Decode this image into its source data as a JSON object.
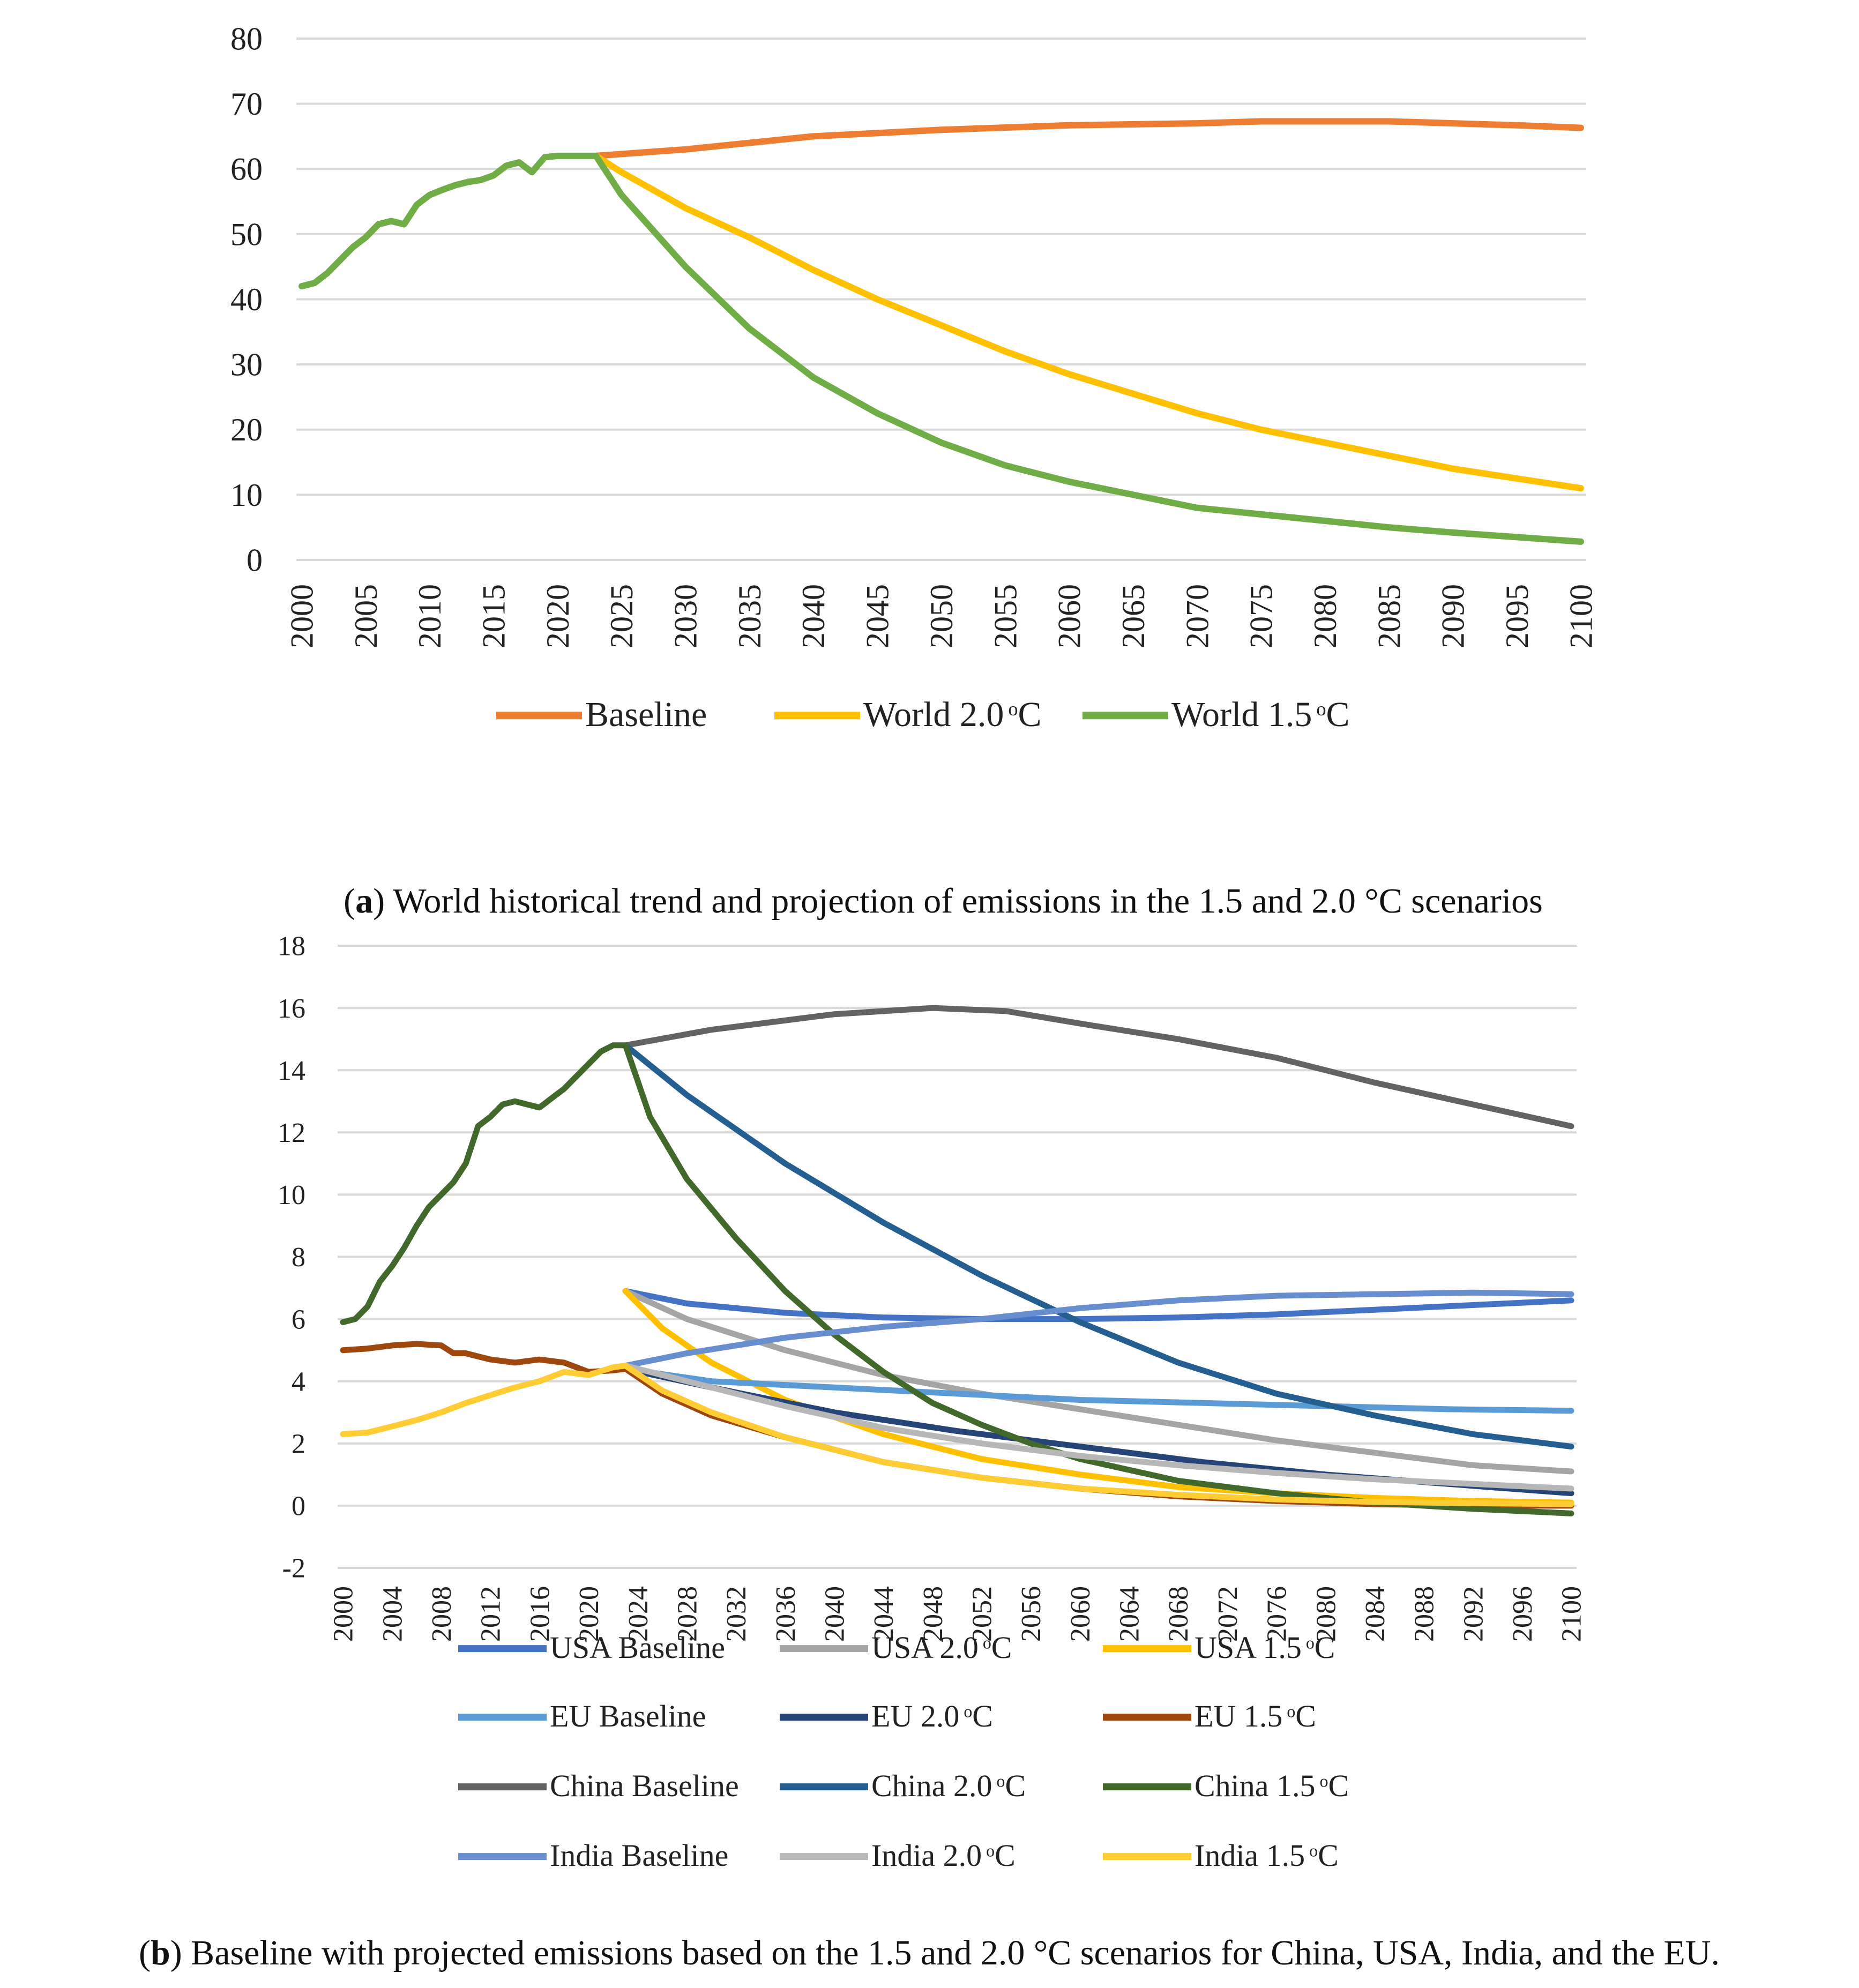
{
  "chart_data": [
    {
      "type": "line",
      "id": "a",
      "caption_label": "a",
      "caption": ") World historical trend and projection of emissions in the 1.5 and 2.0 °C scenarios",
      "ylim": [
        0,
        80
      ],
      "yticks": [
        0,
        10,
        20,
        30,
        40,
        50,
        60,
        70,
        80
      ],
      "xlim": [
        2000,
        2100
      ],
      "xticks": [
        2000,
        2005,
        2010,
        2015,
        2020,
        2025,
        2030,
        2035,
        2040,
        2045,
        2050,
        2055,
        2060,
        2065,
        2070,
        2075,
        2080,
        2085,
        2090,
        2095,
        2100
      ],
      "series": [
        {
          "name": "Baseline",
          "legend": "Baseline",
          "color": "#ED7D31",
          "x": [
            2023,
            2030,
            2040,
            2050,
            2060,
            2070,
            2075,
            2085,
            2090,
            2095,
            2100
          ],
          "y": [
            62,
            63,
            65,
            66,
            66.7,
            67,
            67.3,
            67.3,
            67,
            66.7,
            66.3
          ]
        },
        {
          "name": "World 2.0 °C",
          "legend": "World 2.0",
          "legend_sup": "o",
          "legend_unit": "C",
          "color": "#FFC000",
          "x": [
            2023,
            2025,
            2030,
            2035,
            2040,
            2045,
            2050,
            2055,
            2060,
            2065,
            2070,
            2075,
            2080,
            2085,
            2090,
            2095,
            2100
          ],
          "y": [
            62,
            59.5,
            54,
            49.5,
            44.5,
            40,
            36,
            32,
            28.5,
            25.5,
            22.5,
            20,
            18,
            16,
            14,
            12.5,
            11
          ]
        },
        {
          "name": "World 1.5 °C",
          "legend": "World 1.5",
          "legend_sup": "o",
          "legend_unit": "C",
          "color": "#70AD47",
          "x": [
            2000,
            2001,
            2002,
            2003,
            2004,
            2005,
            2006,
            2007,
            2008,
            2009,
            2010,
            2011,
            2012,
            2013,
            2014,
            2015,
            2016,
            2017,
            2018,
            2019,
            2020,
            2021,
            2022,
            2023,
            2025,
            2030,
            2035,
            2040,
            2045,
            2050,
            2055,
            2060,
            2065,
            2070,
            2075,
            2080,
            2085,
            2090,
            2095,
            2100
          ],
          "y": [
            42,
            42.5,
            44,
            46,
            48,
            49.5,
            51.5,
            52,
            51.5,
            54.5,
            56,
            56.8,
            57.5,
            58,
            58.3,
            59,
            60.5,
            61,
            59.5,
            61.8,
            62,
            62,
            62,
            62,
            56,
            45,
            35.5,
            28,
            22.5,
            18,
            14.5,
            12,
            10,
            8,
            7,
            6,
            5,
            4.2,
            3.5,
            2.8
          ]
        }
      ]
    },
    {
      "type": "line",
      "id": "b",
      "caption_label": "b",
      "caption": ") Baseline with projected emissions based on the 1.5 and 2.0 °C scenarios for China, USA, India, and the EU.",
      "ylim": [
        -2,
        18
      ],
      "yticks": [
        -2,
        0,
        2,
        4,
        6,
        8,
        10,
        12,
        14,
        16,
        18
      ],
      "xlim": [
        2000,
        2100
      ],
      "xticks": [
        2000,
        2004,
        2008,
        2012,
        2016,
        2020,
        2024,
        2028,
        2032,
        2036,
        2040,
        2044,
        2048,
        2052,
        2056,
        2060,
        2064,
        2068,
        2072,
        2076,
        2080,
        2084,
        2088,
        2092,
        2096,
        2100
      ],
      "series": [
        {
          "name": "USA Baseline",
          "legend": "USA Baseline",
          "color": "#4472C4",
          "x": [
            2023,
            2028,
            2036,
            2044,
            2052,
            2060,
            2068,
            2076,
            2084,
            2092,
            2100
          ],
          "y": [
            6.9,
            6.5,
            6.2,
            6.05,
            6.0,
            6.0,
            6.05,
            6.15,
            6.3,
            6.45,
            6.6
          ]
        },
        {
          "name": "USA 2.0 °C",
          "legend": "USA 2.0",
          "legend_sup": "o",
          "legend_unit": "C",
          "color": "#A5A5A5",
          "x": [
            2023,
            2028,
            2036,
            2044,
            2052,
            2060,
            2068,
            2076,
            2084,
            2092,
            2100
          ],
          "y": [
            6.9,
            6.0,
            5.0,
            4.2,
            3.6,
            3.1,
            2.6,
            2.1,
            1.7,
            1.3,
            1.1
          ]
        },
        {
          "name": "USA 1.5 °C",
          "legend": "USA 1.5",
          "legend_sup": "o",
          "legend_unit": "C",
          "color": "#FFC000",
          "x": [
            2023,
            2026,
            2030,
            2036,
            2044,
            2052,
            2060,
            2068,
            2076,
            2084,
            2092,
            2100
          ],
          "y": [
            6.9,
            5.7,
            4.6,
            3.4,
            2.3,
            1.5,
            1.0,
            0.6,
            0.4,
            0.25,
            0.15,
            0.1
          ]
        },
        {
          "name": "EU Baseline",
          "legend": "EU Baseline",
          "color": "#5B9BD5",
          "x": [
            2023,
            2030,
            2040,
            2050,
            2060,
            2070,
            2080,
            2090,
            2100
          ],
          "y": [
            4.4,
            4.0,
            3.8,
            3.6,
            3.4,
            3.3,
            3.2,
            3.1,
            3.05
          ]
        },
        {
          "name": "EU 2.0 °C",
          "legend": "EU 2.0",
          "legend_sup": "o",
          "legend_unit": "C",
          "color": "#264478",
          "x": [
            2023,
            2030,
            2040,
            2050,
            2060,
            2070,
            2080,
            2090,
            2100
          ],
          "y": [
            4.4,
            3.8,
            3.0,
            2.4,
            1.9,
            1.4,
            1.0,
            0.7,
            0.4
          ]
        },
        {
          "name": "EU 1.5 °C",
          "legend": "EU 1.5",
          "legend_sup": "o",
          "legend_unit": "C",
          "color": "#9E480E",
          "x": [
            2000,
            2002,
            2004,
            2006,
            2008,
            2009,
            2010,
            2012,
            2014,
            2016,
            2018,
            2020,
            2022,
            2023,
            2026,
            2030,
            2036,
            2044,
            2052,
            2060,
            2068,
            2076,
            2084,
            2092,
            2100
          ],
          "y": [
            5.0,
            5.05,
            5.15,
            5.2,
            5.15,
            4.9,
            4.9,
            4.7,
            4.6,
            4.7,
            4.6,
            4.3,
            4.35,
            4.4,
            3.6,
            2.9,
            2.2,
            1.4,
            0.9,
            0.55,
            0.3,
            0.15,
            0.05,
            0.0,
            0.0
          ]
        },
        {
          "name": "China Baseline",
          "legend": "China Baseline",
          "color": "#636363",
          "x": [
            2023,
            2030,
            2040,
            2048,
            2054,
            2060,
            2068,
            2076,
            2084,
            2092,
            2100
          ],
          "y": [
            14.8,
            15.3,
            15.8,
            16.0,
            15.9,
            15.5,
            15.0,
            14.4,
            13.6,
            12.9,
            12.2
          ]
        },
        {
          "name": "China 2.0 °C",
          "legend": "China 2.0",
          "legend_sup": "o",
          "legend_unit": "C",
          "color": "#255E91",
          "x": [
            2023,
            2028,
            2036,
            2044,
            2052,
            2060,
            2068,
            2076,
            2084,
            2092,
            2100
          ],
          "y": [
            14.8,
            13.2,
            11.0,
            9.1,
            7.4,
            5.9,
            4.6,
            3.6,
            2.9,
            2.3,
            1.9
          ]
        },
        {
          "name": "China 1.5 °C",
          "legend": "China 1.5",
          "legend_sup": "o",
          "legend_unit": "C",
          "color": "#43682B",
          "x": [
            2000,
            2001,
            2002,
            2003,
            2004,
            2005,
            2006,
            2007,
            2008,
            2009,
            2010,
            2011,
            2012,
            2013,
            2014,
            2015,
            2016,
            2017,
            2018,
            2019,
            2020,
            2021,
            2022,
            2023,
            2025,
            2028,
            2032,
            2036,
            2040,
            2044,
            2048,
            2052,
            2056,
            2060,
            2068,
            2076,
            2084,
            2092,
            2100
          ],
          "y": [
            5.9,
            6.0,
            6.4,
            7.2,
            7.7,
            8.3,
            9.0,
            9.6,
            10.0,
            10.4,
            11.0,
            12.2,
            12.5,
            12.9,
            13.0,
            12.9,
            12.8,
            13.1,
            13.4,
            13.8,
            14.2,
            14.6,
            14.8,
            14.8,
            12.5,
            10.5,
            8.6,
            6.9,
            5.5,
            4.3,
            3.3,
            2.6,
            2.0,
            1.5,
            0.8,
            0.4,
            0.1,
            -0.1,
            -0.25
          ]
        },
        {
          "name": "India Baseline",
          "legend": "India Baseline",
          "color": "#698ED0",
          "x": [
            2023,
            2028,
            2036,
            2044,
            2052,
            2060,
            2068,
            2076,
            2084,
            2092,
            2100
          ],
          "y": [
            4.5,
            4.9,
            5.4,
            5.75,
            6.0,
            6.35,
            6.6,
            6.75,
            6.8,
            6.85,
            6.8
          ]
        },
        {
          "name": "India 2.0 °C",
          "legend": "India 2.0",
          "legend_sup": "o",
          "legend_unit": "C",
          "color": "#B7B7B7",
          "x": [
            2023,
            2028,
            2036,
            2044,
            2052,
            2060,
            2068,
            2076,
            2084,
            2092,
            2100
          ],
          "y": [
            4.5,
            4.0,
            3.2,
            2.5,
            2.0,
            1.6,
            1.3,
            1.05,
            0.85,
            0.7,
            0.55
          ]
        },
        {
          "name": "India 1.5 °C",
          "legend": "India 1.5",
          "legend_sup": "o",
          "legend_unit": "C",
          "color": "#FFCD33",
          "x": [
            2000,
            2002,
            2004,
            2006,
            2008,
            2010,
            2012,
            2014,
            2016,
            2018,
            2020,
            2022,
            2023,
            2026,
            2030,
            2036,
            2044,
            2052,
            2060,
            2068,
            2076,
            2084,
            2092,
            2100
          ],
          "y": [
            2.3,
            2.35,
            2.55,
            2.75,
            3.0,
            3.3,
            3.55,
            3.8,
            4.0,
            4.3,
            4.2,
            4.45,
            4.5,
            3.7,
            3.0,
            2.2,
            1.4,
            0.9,
            0.55,
            0.35,
            0.2,
            0.12,
            0.08,
            0.05
          ]
        }
      ]
    }
  ]
}
